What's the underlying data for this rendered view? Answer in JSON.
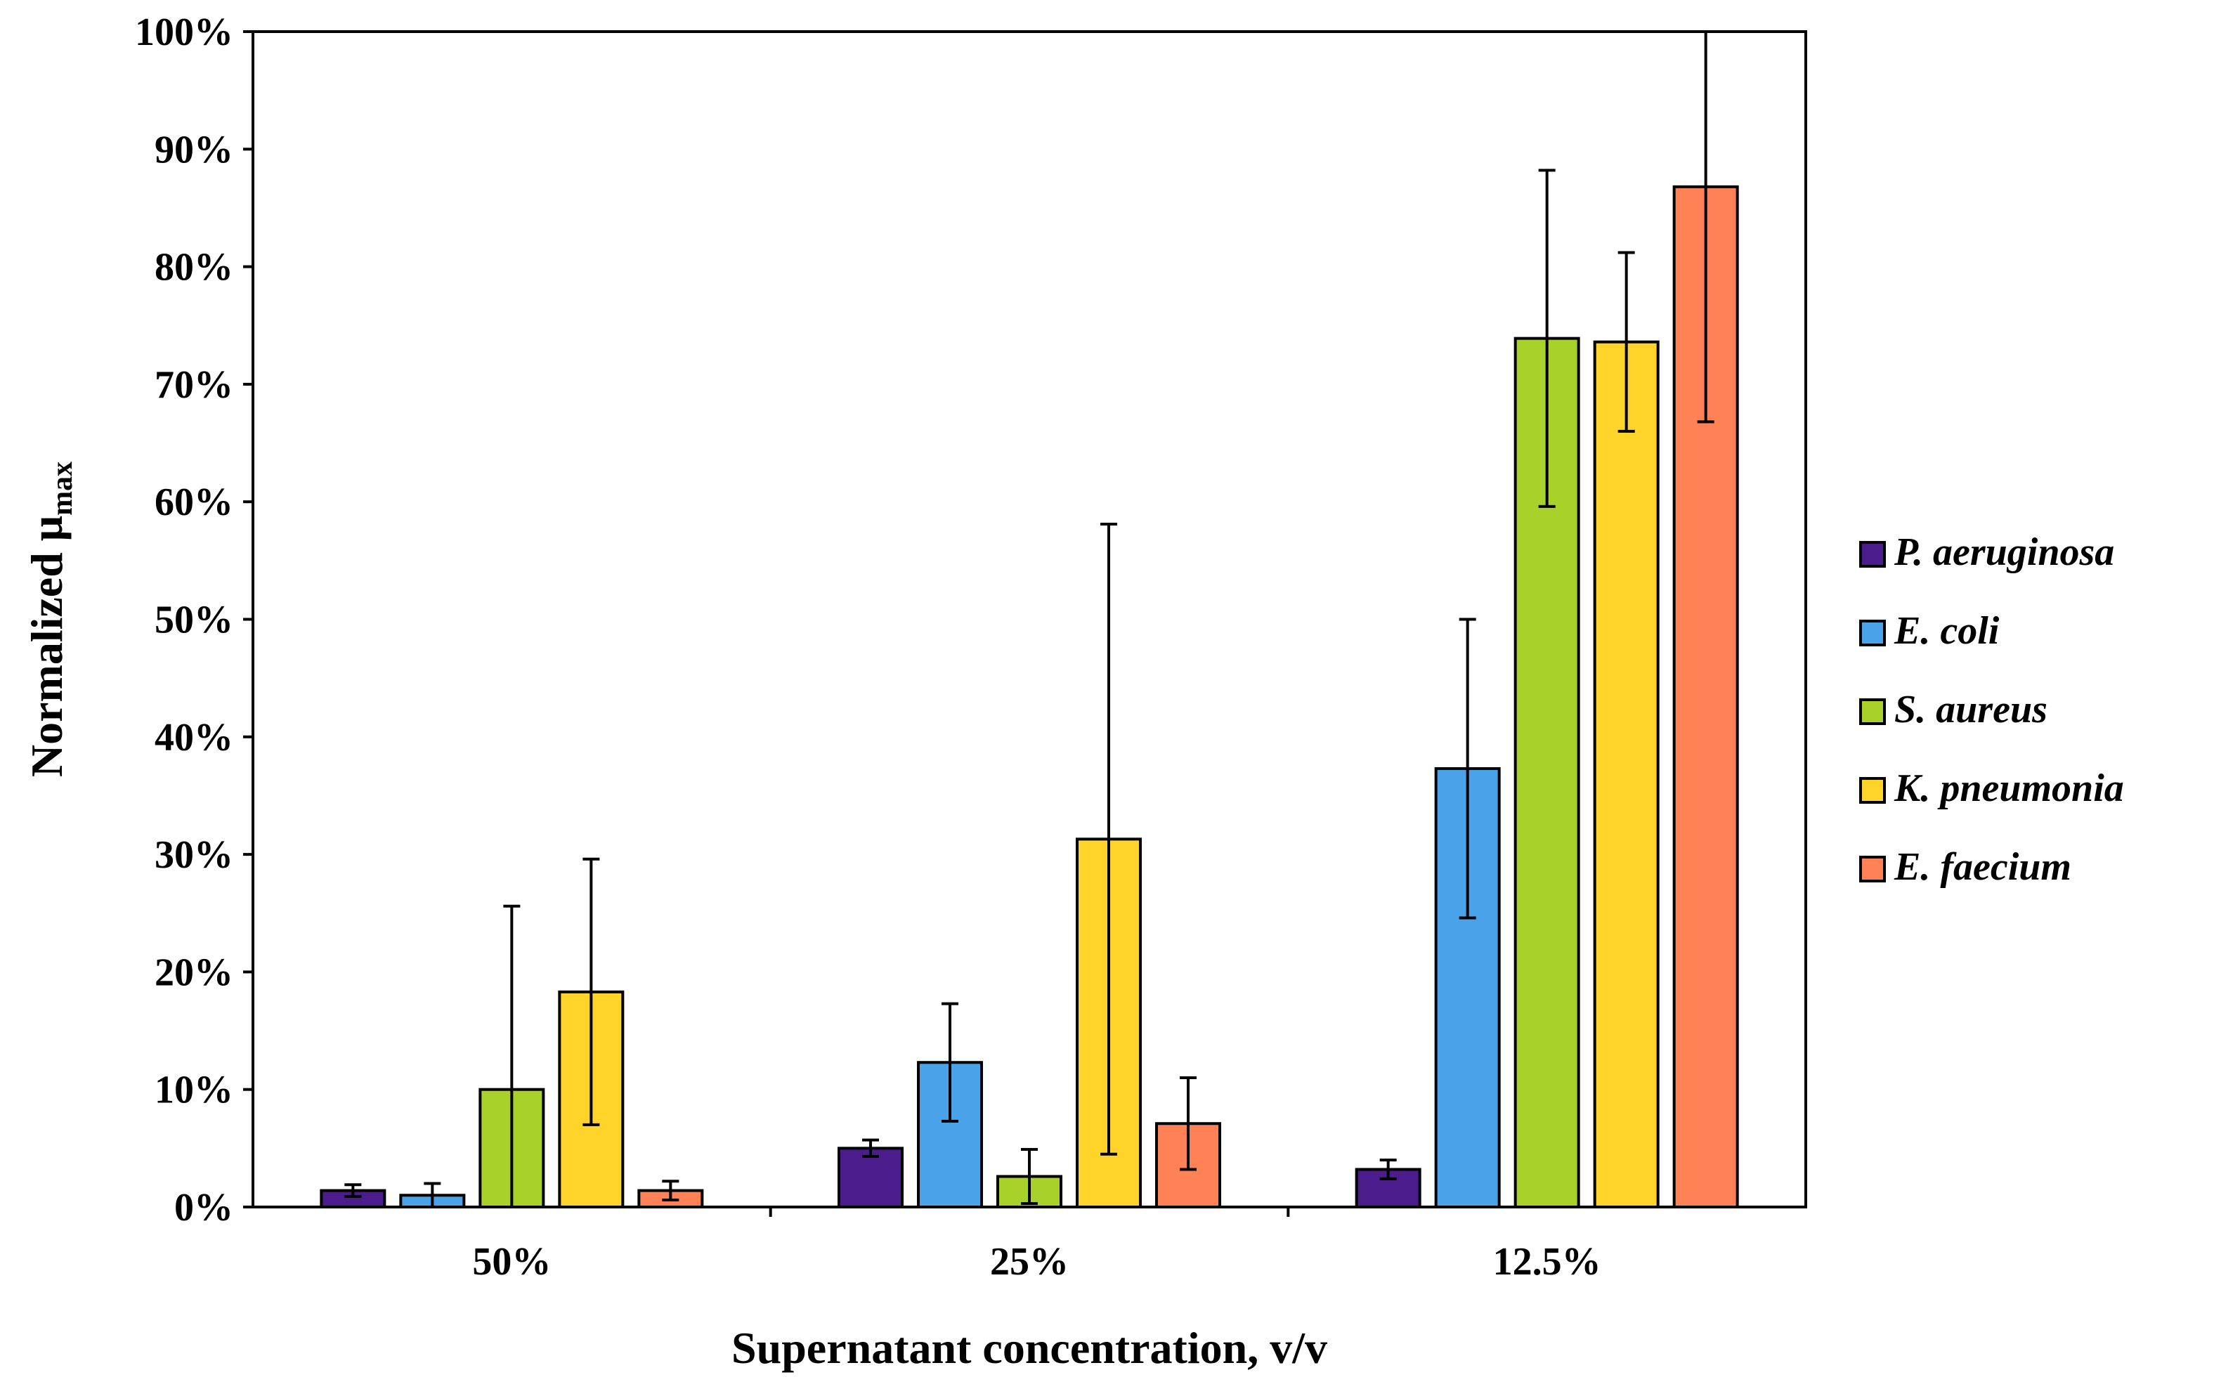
{
  "chart_data": {
    "type": "bar",
    "title": "",
    "xlabel": "Supernatant concentration, v/v",
    "ylabel": {
      "main": "Normalized μ",
      "subscript": "max"
    },
    "categories": [
      "50%",
      "25%",
      "12.5%"
    ],
    "ylim": [
      0,
      100
    ],
    "yticks": [
      0,
      10,
      20,
      30,
      40,
      50,
      60,
      70,
      80,
      90,
      100
    ],
    "ytick_labels": [
      "0%",
      "10%",
      "20%",
      "30%",
      "40%",
      "50%",
      "60%",
      "70%",
      "80%",
      "90%",
      "100%"
    ],
    "grid": false,
    "legend_position": "right",
    "series": [
      {
        "name": "P. aeruginosa",
        "color": "#4B1C8C",
        "values": [
          1.4,
          5.0,
          3.2
        ],
        "error": [
          0.5,
          0.7,
          0.8
        ]
      },
      {
        "name": "E. coli",
        "color": "#4AA3E8",
        "values": [
          1.0,
          12.3,
          37.3
        ],
        "error": [
          1.0,
          5.0,
          12.7
        ]
      },
      {
        "name": "S. aureus",
        "color": "#A8D12A",
        "values": [
          10.0,
          2.6,
          73.9
        ],
        "error": [
          15.6,
          2.3,
          14.3
        ]
      },
      {
        "name": "K. pneumonia",
        "color": "#FFD42A",
        "values": [
          18.3,
          31.3,
          73.6
        ],
        "error": [
          11.3,
          26.8,
          7.6
        ]
      },
      {
        "name": "E. faecium",
        "color": "#FF8257",
        "values": [
          1.4,
          7.1,
          86.8
        ],
        "error": [
          0.8,
          3.9,
          20.0
        ]
      }
    ]
  }
}
